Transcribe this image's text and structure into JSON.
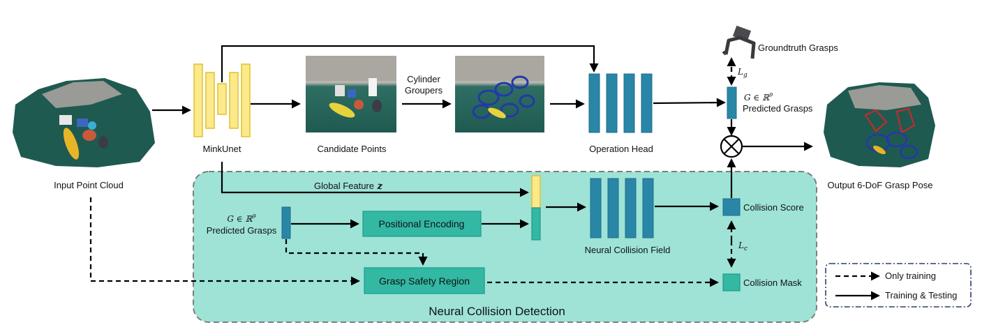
{
  "labels": {
    "input_point_cloud": "Input Point Cloud",
    "minkunet": "MinkUnet",
    "candidate_points": "Candidate Points",
    "cylinder_groupers_line1": "Cylinder",
    "cylinder_groupers_line2": "Groupers",
    "operation_head": "Operation Head",
    "groundtruth_grasps": "Groundtruth Grasps",
    "loss_g": "L",
    "loss_g_sub": "g",
    "pred_grasps_top_math": "G ∈ ℝ",
    "pred_grasps_top_sup": "9",
    "pred_grasps_top_label": "Predicted Grasps",
    "output_pose": "Output 6-DoF Grasp Pose",
    "global_feature": "Global Feature",
    "global_feature_symbol": "z",
    "pred_grasps_left_math": "G ∈ ℝ",
    "pred_grasps_left_sup": "9",
    "pred_grasps_left_label": "Predicted Grasps",
    "positional_encoding": "Positional Encoding",
    "neural_collision_field": "Neural Collision Field",
    "collision_score": "Collision Score",
    "loss_c": "L",
    "loss_c_sub": "c",
    "grasp_safety_region": "Grasp Safety Region",
    "collision_mask": "Collision Mask",
    "ncd_title": "Neural Collision Detection"
  },
  "legend": {
    "only_training": "Only training",
    "training_testing": "Training & Testing"
  },
  "colors": {
    "ncd_background": "#9ee3d6",
    "teal_bar": "#2a86a6",
    "green_box": "#33b8a4",
    "yellow_bar": "#fbe98a"
  }
}
